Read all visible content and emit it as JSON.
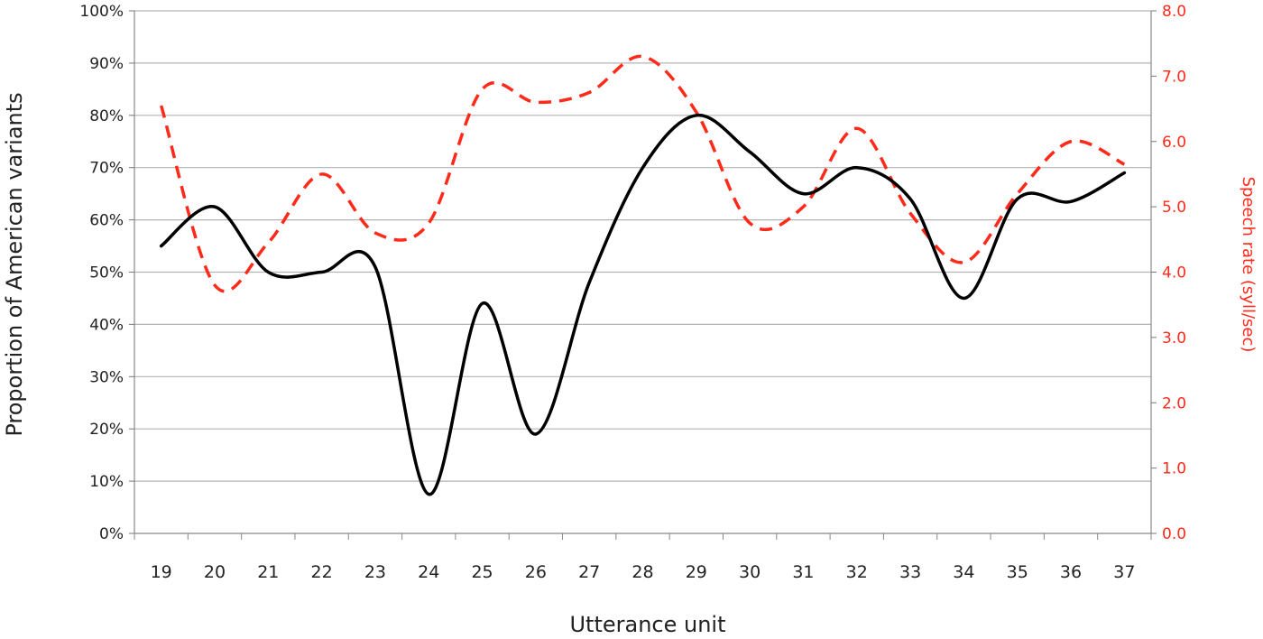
{
  "chart_data": {
    "type": "line",
    "title": "",
    "xlabel": "Utterance unit",
    "ylabel": "Proportion of American variants",
    "y2label": "Speech rate (syll/sec)",
    "categories": [
      "19",
      "20",
      "21",
      "22",
      "23",
      "24",
      "25",
      "26",
      "27",
      "28",
      "29",
      "30",
      "31",
      "32",
      "33",
      "34",
      "35",
      "36",
      "37"
    ],
    "ylim": [
      0,
      100
    ],
    "y_ticks": [
      "0%",
      "10%",
      "20%",
      "30%",
      "40%",
      "50%",
      "60%",
      "70%",
      "80%",
      "90%",
      "100%"
    ],
    "y2lim": [
      0,
      8
    ],
    "y2_ticks": [
      "0.0",
      "1.0",
      "2.0",
      "3.0",
      "4.0",
      "5.0",
      "6.0",
      "7.0",
      "8.0"
    ],
    "grid": true,
    "legend": "none",
    "series": [
      {
        "axis": "left",
        "style": "solid",
        "color": "#000000",
        "values": [
          55,
          62.5,
          50,
          50,
          51,
          7.5,
          44,
          19,
          48,
          70,
          80,
          73,
          65,
          70,
          64,
          45,
          64,
          63.5,
          69
        ]
      },
      {
        "axis": "right",
        "style": "dashed",
        "color": "#ff2a1a",
        "values": [
          6.55,
          3.8,
          4.45,
          5.5,
          4.6,
          4.75,
          6.8,
          6.6,
          6.75,
          7.3,
          6.45,
          4.75,
          5.0,
          6.2,
          4.9,
          4.15,
          5.2,
          6.0,
          5.65
        ]
      }
    ]
  }
}
